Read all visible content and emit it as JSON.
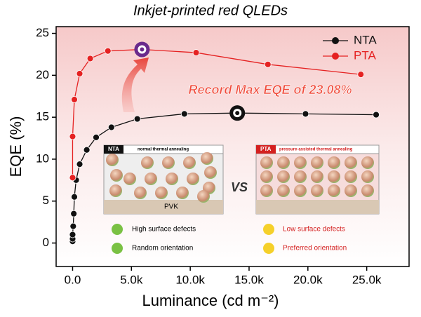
{
  "chart_data": {
    "type": "line",
    "title": "Inkjet-printed red QLEDs",
    "x_label": "Luminance (cd m⁻²)",
    "y_label": "EQE (%)",
    "annotation": "Record Max EQE of 23.08%",
    "xlim": [
      -1400,
      28600
    ],
    "ylim": [
      -2.8,
      25.8
    ],
    "xticks": [
      {
        "value": 0,
        "label": "0.0"
      },
      {
        "value": 5000,
        "label": "5.0k"
      },
      {
        "value": 10000,
        "label": "10.0k"
      },
      {
        "value": 15000,
        "label": "15.0k"
      },
      {
        "value": 20000,
        "label": "20.0k"
      },
      {
        "value": 25000,
        "label": "25.0k"
      }
    ],
    "yticks": [
      0,
      5,
      10,
      15,
      20,
      25
    ],
    "legend": "top-right",
    "series": [
      {
        "name": "NTA",
        "color": "#111111",
        "x": [
          0,
          0,
          0,
          50,
          100,
          150,
          300,
          600,
          1200,
          2000,
          3300,
          5500,
          9500,
          14000,
          19800,
          25800
        ],
        "values": [
          0.2,
          0.5,
          1,
          2,
          3.5,
          5.5,
          7.5,
          9.4,
          11.1,
          12.6,
          13.8,
          14.8,
          15.4,
          15.5,
          15.4,
          15.3
        ]
      },
      {
        "name": "PTA",
        "color": "#e52222",
        "x": [
          0,
          0,
          150,
          600,
          1500,
          3000,
          5900,
          10500,
          16600,
          24500
        ],
        "values": [
          7.8,
          12.7,
          17.1,
          20.2,
          22,
          22.9,
          23.08,
          22.7,
          21.3,
          20.1
        ]
      }
    ],
    "insets": [
      {
        "tag": "NTA",
        "caption": "normal thermal annealing",
        "layer": "PVK",
        "notes": [
          "High surface defects",
          "Random orientation"
        ]
      },
      {
        "tag": "PTA",
        "caption": "pressure-assisted thermal annealing",
        "notes": [
          "Low surface defects",
          "Preferred orientation"
        ]
      }
    ],
    "vs": "VS"
  }
}
